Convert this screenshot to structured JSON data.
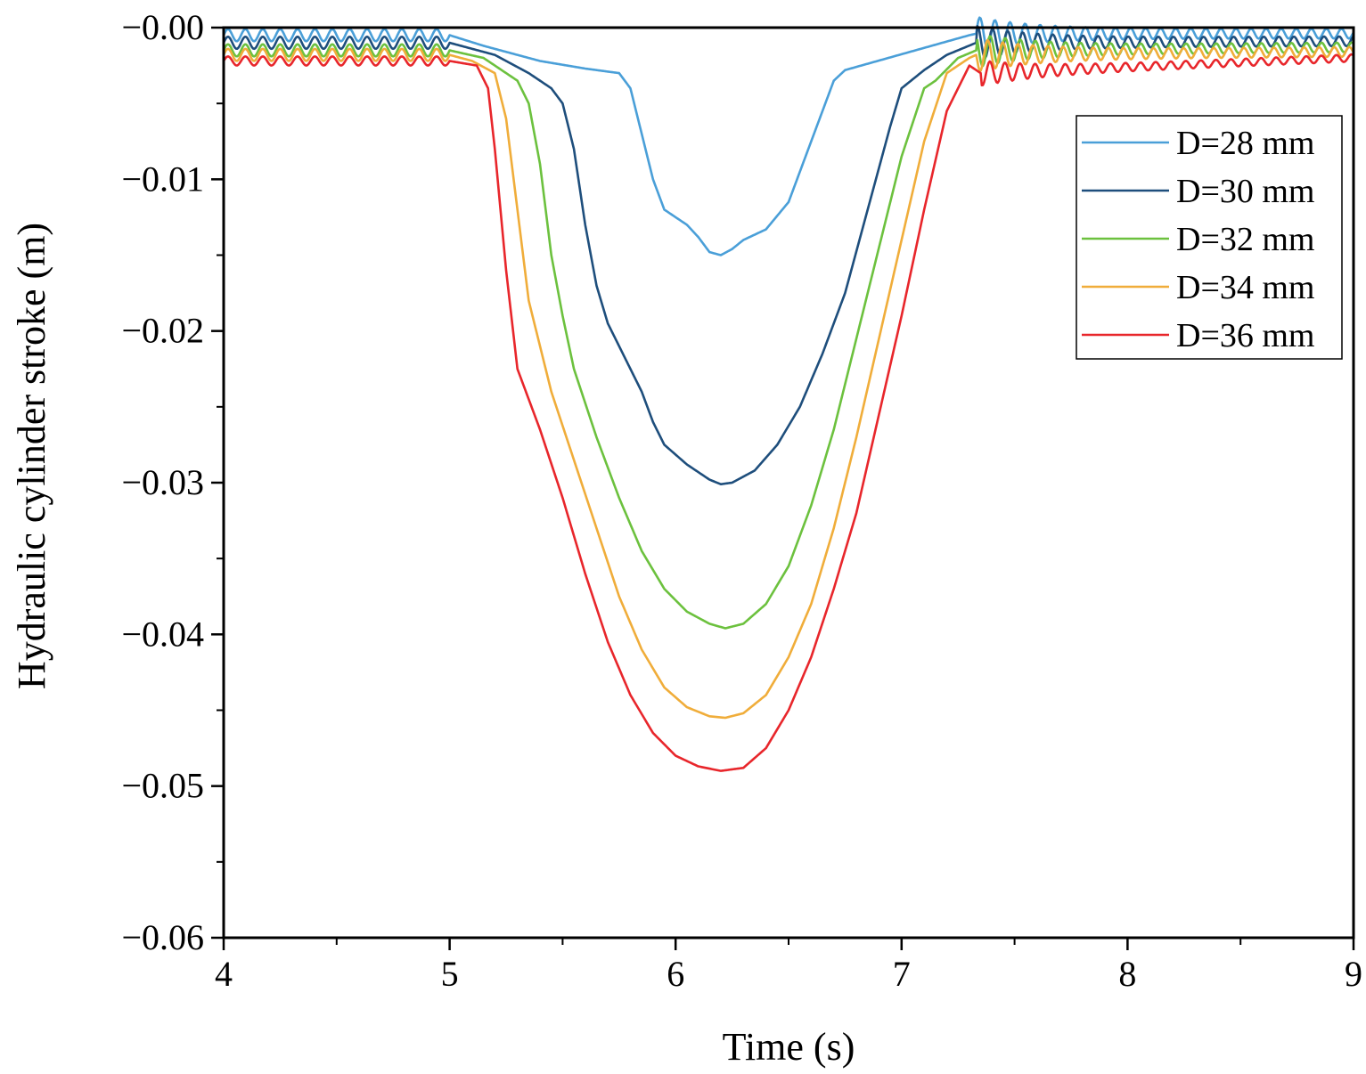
{
  "chart_data": {
    "type": "line",
    "title": "",
    "xlabel": "Time (s)",
    "ylabel": "Hydraulic cylinder stroke (m)",
    "xlim": [
      4,
      9
    ],
    "ylim": [
      -0.06,
      0.0
    ],
    "x_ticks": [
      4,
      5,
      6,
      7,
      8,
      9
    ],
    "x_tick_labels": [
      "4",
      "5",
      "6",
      "7",
      "8",
      "9"
    ],
    "y_ticks": [
      0.0,
      -0.01,
      -0.02,
      -0.03,
      -0.04,
      -0.05,
      -0.06
    ],
    "y_tick_labels": [
      "−0.00",
      "−0.01",
      "−0.02",
      "−0.03",
      "−0.04",
      "−0.05",
      "−0.06"
    ],
    "grid": false,
    "legend_position": "top-right",
    "series": [
      {
        "name": "D=28 mm",
        "color": "#4a9fd8",
        "baseline_before": -0.0005,
        "baseline_after": -0.0004,
        "ripple": 0.0004,
        "points": [
          [
            4.0,
            -0.0005
          ],
          [
            5.0,
            -0.0005
          ],
          [
            5.15,
            -0.0012
          ],
          [
            5.4,
            -0.0022
          ],
          [
            5.6,
            -0.0027
          ],
          [
            5.75,
            -0.003
          ],
          [
            5.8,
            -0.004
          ],
          [
            5.85,
            -0.007
          ],
          [
            5.9,
            -0.01
          ],
          [
            5.95,
            -0.012
          ],
          [
            6.0,
            -0.0125
          ],
          [
            6.05,
            -0.013
          ],
          [
            6.1,
            -0.0138
          ],
          [
            6.15,
            -0.0148
          ],
          [
            6.2,
            -0.015
          ],
          [
            6.25,
            -0.0146
          ],
          [
            6.3,
            -0.014
          ],
          [
            6.4,
            -0.0133
          ],
          [
            6.5,
            -0.0115
          ],
          [
            6.6,
            -0.0075
          ],
          [
            6.7,
            -0.0035
          ],
          [
            6.75,
            -0.0028
          ],
          [
            7.3,
            -0.0005
          ],
          [
            7.33,
            -0.0004
          ],
          [
            9.0,
            -0.0004
          ]
        ]
      },
      {
        "name": "D=30 mm",
        "color": "#1e4e7c",
        "baseline_before": -0.001,
        "baseline_after": -0.0009,
        "ripple": 0.0004,
        "points": [
          [
            4.0,
            -0.001
          ],
          [
            5.0,
            -0.001
          ],
          [
            5.2,
            -0.0018
          ],
          [
            5.35,
            -0.003
          ],
          [
            5.45,
            -0.004
          ],
          [
            5.5,
            -0.005
          ],
          [
            5.55,
            -0.008
          ],
          [
            5.6,
            -0.013
          ],
          [
            5.65,
            -0.017
          ],
          [
            5.7,
            -0.0195
          ],
          [
            5.75,
            -0.021
          ],
          [
            5.8,
            -0.0225
          ],
          [
            5.85,
            -0.024
          ],
          [
            5.9,
            -0.026
          ],
          [
            5.95,
            -0.0275
          ],
          [
            6.05,
            -0.0288
          ],
          [
            6.15,
            -0.0298
          ],
          [
            6.2,
            -0.0301
          ],
          [
            6.25,
            -0.03
          ],
          [
            6.35,
            -0.0292
          ],
          [
            6.45,
            -0.0275
          ],
          [
            6.55,
            -0.025
          ],
          [
            6.65,
            -0.0215
          ],
          [
            6.75,
            -0.0175
          ],
          [
            6.85,
            -0.012
          ],
          [
            6.95,
            -0.0065
          ],
          [
            7.0,
            -0.004
          ],
          [
            7.1,
            -0.0028
          ],
          [
            7.2,
            -0.0018
          ],
          [
            7.33,
            -0.001
          ],
          [
            9.0,
            -0.0009
          ]
        ]
      },
      {
        "name": "D=32 mm",
        "color": "#6cc13e",
        "baseline_before": -0.0015,
        "baseline_after": -0.0013,
        "ripple": 0.0004,
        "points": [
          [
            4.0,
            -0.0015
          ],
          [
            5.0,
            -0.0015
          ],
          [
            5.15,
            -0.002
          ],
          [
            5.3,
            -0.0035
          ],
          [
            5.35,
            -0.005
          ],
          [
            5.4,
            -0.009
          ],
          [
            5.45,
            -0.015
          ],
          [
            5.5,
            -0.019
          ],
          [
            5.55,
            -0.0225
          ],
          [
            5.65,
            -0.027
          ],
          [
            5.75,
            -0.031
          ],
          [
            5.85,
            -0.0345
          ],
          [
            5.95,
            -0.037
          ],
          [
            6.05,
            -0.0385
          ],
          [
            6.15,
            -0.0393
          ],
          [
            6.22,
            -0.0396
          ],
          [
            6.3,
            -0.0393
          ],
          [
            6.4,
            -0.038
          ],
          [
            6.5,
            -0.0355
          ],
          [
            6.6,
            -0.0315
          ],
          [
            6.7,
            -0.0265
          ],
          [
            6.8,
            -0.0205
          ],
          [
            6.9,
            -0.0145
          ],
          [
            7.0,
            -0.0085
          ],
          [
            7.1,
            -0.004
          ],
          [
            7.15,
            -0.0035
          ],
          [
            7.25,
            -0.002
          ],
          [
            7.33,
            -0.0015
          ],
          [
            9.0,
            -0.0013
          ]
        ]
      },
      {
        "name": "D=34 mm",
        "color": "#f0ad3a",
        "baseline_before": -0.0018,
        "baseline_after": -0.0016,
        "ripple": 0.0004,
        "points": [
          [
            4.0,
            -0.0018
          ],
          [
            5.0,
            -0.0018
          ],
          [
            5.1,
            -0.0022
          ],
          [
            5.2,
            -0.003
          ],
          [
            5.25,
            -0.006
          ],
          [
            5.3,
            -0.012
          ],
          [
            5.35,
            -0.018
          ],
          [
            5.45,
            -0.024
          ],
          [
            5.55,
            -0.0285
          ],
          [
            5.65,
            -0.033
          ],
          [
            5.75,
            -0.0375
          ],
          [
            5.85,
            -0.041
          ],
          [
            5.95,
            -0.0435
          ],
          [
            6.05,
            -0.0448
          ],
          [
            6.15,
            -0.0454
          ],
          [
            6.22,
            -0.0455
          ],
          [
            6.3,
            -0.0452
          ],
          [
            6.4,
            -0.044
          ],
          [
            6.5,
            -0.0415
          ],
          [
            6.6,
            -0.038
          ],
          [
            6.7,
            -0.033
          ],
          [
            6.8,
            -0.027
          ],
          [
            6.9,
            -0.0205
          ],
          [
            7.0,
            -0.014
          ],
          [
            7.1,
            -0.0075
          ],
          [
            7.2,
            -0.003
          ],
          [
            7.3,
            -0.002
          ],
          [
            7.33,
            -0.0018
          ],
          [
            9.0,
            -0.0016
          ]
        ]
      },
      {
        "name": "D=36 mm",
        "color": "#e8262b",
        "baseline_before": -0.0022,
        "baseline_after": -0.002,
        "ripple": 0.0003,
        "points": [
          [
            4.0,
            -0.0022
          ],
          [
            5.0,
            -0.0022
          ],
          [
            5.12,
            -0.0025
          ],
          [
            5.17,
            -0.004
          ],
          [
            5.2,
            -0.008
          ],
          [
            5.25,
            -0.016
          ],
          [
            5.3,
            -0.0225
          ],
          [
            5.4,
            -0.0265
          ],
          [
            5.5,
            -0.031
          ],
          [
            5.6,
            -0.036
          ],
          [
            5.7,
            -0.0405
          ],
          [
            5.8,
            -0.044
          ],
          [
            5.9,
            -0.0465
          ],
          [
            6.0,
            -0.048
          ],
          [
            6.1,
            -0.0487
          ],
          [
            6.2,
            -0.049
          ],
          [
            6.3,
            -0.0488
          ],
          [
            6.4,
            -0.0475
          ],
          [
            6.5,
            -0.045
          ],
          [
            6.6,
            -0.0415
          ],
          [
            6.7,
            -0.037
          ],
          [
            6.8,
            -0.032
          ],
          [
            6.9,
            -0.0255
          ],
          [
            7.0,
            -0.019
          ],
          [
            7.1,
            -0.012
          ],
          [
            7.2,
            -0.0055
          ],
          [
            7.3,
            -0.0025
          ],
          [
            7.35,
            -0.003
          ],
          [
            9.0,
            -0.002
          ]
        ]
      }
    ]
  }
}
